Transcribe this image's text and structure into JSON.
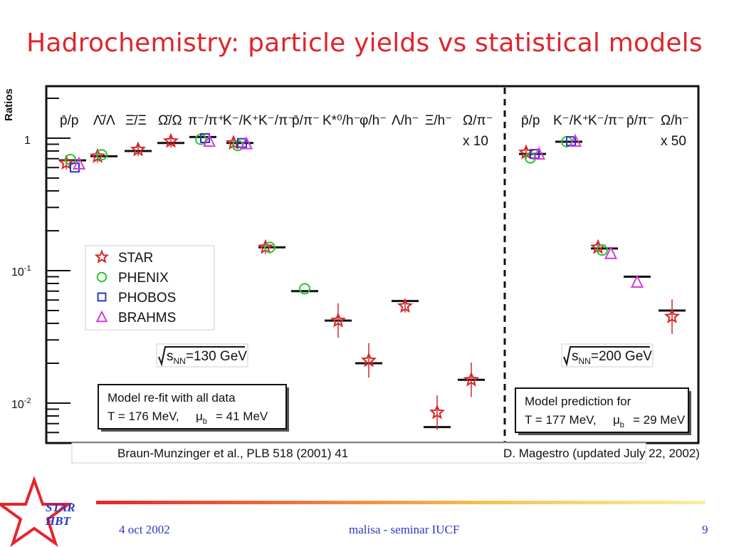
{
  "slide": {
    "title": "Hadrochemistry: particle yields vs statistical models",
    "ylabel": "Ratios",
    "footer": {
      "date": "4 oct 2002",
      "center": "malisa - seminar IUCF",
      "page": "9"
    },
    "logo_text": [
      "STAR",
      "HBT"
    ]
  },
  "chart_data": {
    "type": "scatter",
    "yscale": "log",
    "ylim": [
      0.005,
      2
    ],
    "ytick_labels": {
      "1": "1",
      "0.1": "10^-1",
      "0.01": "10^-2"
    },
    "legend": {
      "placement": "center-left",
      "entries": [
        {
          "name": "STAR",
          "marker": "star",
          "color": "#d4262c"
        },
        {
          "name": "PHENIX",
          "marker": "circle",
          "color": "#2bc62b"
        },
        {
          "name": "PHOBOS",
          "marker": "square",
          "color": "#2b36c8"
        },
        {
          "name": "BRAHMS",
          "marker": "triangle",
          "color": "#d63ad6"
        }
      ]
    },
    "panels": [
      {
        "energy_label": "s_NN=130 GeV",
        "model_box": {
          "line1": "Model re-fit with all data",
          "line2_a": "T = 176 MeV,",
          "line2_b": "μ",
          "line2_sub": "b",
          "line2_c": "= 41 MeV"
        },
        "reference": "Braun-Munzinger et al., PLB 518 (2001) 41",
        "categories": [
          {
            "label": "p̄/p",
            "model": 0.68,
            "points": {
              "STAR": 0.65,
              "PHENIX": 0.69,
              "PHOBOS": 0.6,
              "BRAHMS": 0.64
            }
          },
          {
            "label": "Λ̄/Λ",
            "model": 0.73,
            "points": {
              "STAR": 0.73,
              "PHENIX": 0.75
            }
          },
          {
            "label": "Ξ̄/Ξ",
            "model": 0.8,
            "points": {
              "STAR": 0.82
            }
          },
          {
            "label": "Ω̄/Ω",
            "model": 0.92,
            "points": {
              "STAR": 0.95
            }
          },
          {
            "label": "π⁻/π⁺",
            "model": 1.02,
            "points": {
              "PHENIX": 0.98,
              "PHOBOS": 1.0,
              "BRAHMS": 0.95
            }
          },
          {
            "label": "K⁻/K⁺",
            "model": 0.92,
            "points": {
              "STAR": 0.92,
              "PHENIX": 0.88,
              "PHOBOS": 0.92,
              "BRAHMS": 0.91
            }
          },
          {
            "label": "K⁻/π⁻",
            "model": 0.15,
            "points": {
              "STAR": 0.15,
              "PHENIX": 0.15
            }
          },
          {
            "label": "p̄/π⁻",
            "model": 0.07,
            "points": {
              "PHENIX": 0.073
            }
          },
          {
            "label": "K*⁰/h⁻",
            "model": 0.042,
            "points": {
              "STAR": 0.042
            }
          },
          {
            "label": "φ/h⁻",
            "model": 0.02,
            "points": {
              "STAR": 0.021
            }
          },
          {
            "label": "Λ/h⁻",
            "model": 0.059,
            "points": {
              "STAR": 0.054
            }
          },
          {
            "label": "Ξ/h⁻",
            "model": 0.0066,
            "points": {
              "STAR": 0.0085
            }
          },
          {
            "label": "Ω/π⁻",
            "sublabel": "x 10",
            "model": 0.015,
            "points": {
              "STAR": 0.015
            }
          }
        ]
      },
      {
        "energy_label": "s_NN=200 GeV",
        "model_box": {
          "line1": "Model prediction for",
          "line2_a": "T = 177 MeV,",
          "line2_b": "μ",
          "line2_sub": "b",
          "line2_c": "= 29 MeV"
        },
        "reference": "D. Magestro (updated July 22, 2002)",
        "categories": [
          {
            "label": "p̄/p",
            "model": 0.76,
            "points": {
              "STAR": 0.78,
              "PHENIX": 0.71,
              "PHOBOS": 0.76,
              "BRAHMS": 0.76
            }
          },
          {
            "label": "K⁻/K⁺",
            "model": 0.94,
            "points": {
              "PHENIX": 0.94,
              "PHOBOS": 0.95,
              "BRAHMS": 0.95
            }
          },
          {
            "label": "K⁻/π⁻",
            "model": 0.147,
            "points": {
              "STAR": 0.15,
              "PHENIX": 0.143,
              "BRAHMS": 0.135
            }
          },
          {
            "label": "p̄/π⁻",
            "model": 0.09,
            "points": {
              "BRAHMS": 0.082
            }
          },
          {
            "label": "Ω/h⁻",
            "sublabel": "x 50",
            "model": 0.05,
            "points": {
              "STAR": 0.045
            }
          }
        ]
      }
    ]
  }
}
